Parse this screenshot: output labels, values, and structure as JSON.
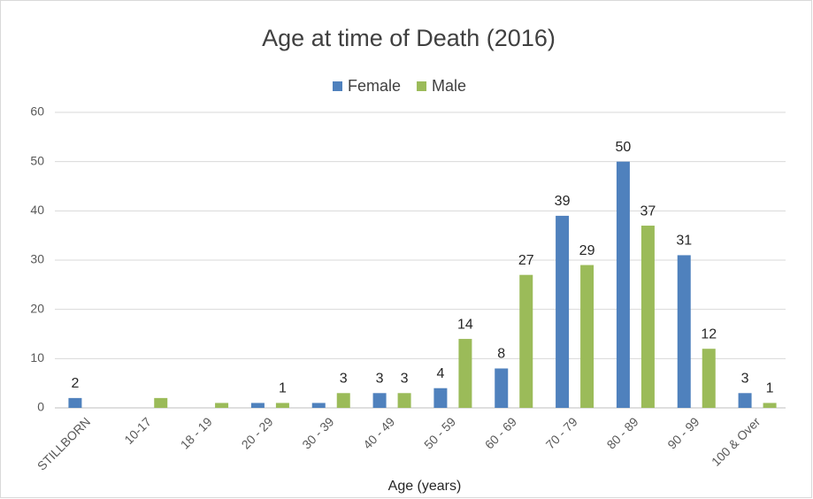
{
  "chart_data": {
    "type": "bar",
    "title": "Age at time of Death (2016)",
    "x_label": "Age (years)",
    "categories": [
      "STILLBORN",
      "10-17",
      "18 - 19",
      "20 - 29",
      "30 - 39",
      "40 - 49",
      "50 - 59",
      "60 - 69",
      "70 - 79",
      "80 - 89",
      "90 - 99",
      "100 & Over"
    ],
    "series": [
      {
        "name": "Female",
        "color": "#4f81bd",
        "values": [
          2,
          0,
          0,
          1,
          1,
          3,
          4,
          8,
          39,
          50,
          31,
          3
        ],
        "value_labels": [
          "2",
          null,
          null,
          null,
          null,
          "3",
          "4",
          "8",
          "39",
          "50",
          "31",
          "3"
        ]
      },
      {
        "name": "Male",
        "color": "#9bbb59",
        "values": [
          0,
          2,
          1,
          1,
          3,
          3,
          14,
          27,
          29,
          37,
          12,
          1
        ],
        "value_labels": [
          null,
          null,
          null,
          "1",
          "3",
          "3",
          "14",
          "27",
          "29",
          "37",
          "12",
          "1"
        ]
      }
    ],
    "ylim": [
      0,
      60
    ],
    "yticks": [
      0,
      10,
      20,
      30,
      40,
      50,
      60
    ],
    "grid": true,
    "legend": "top"
  }
}
